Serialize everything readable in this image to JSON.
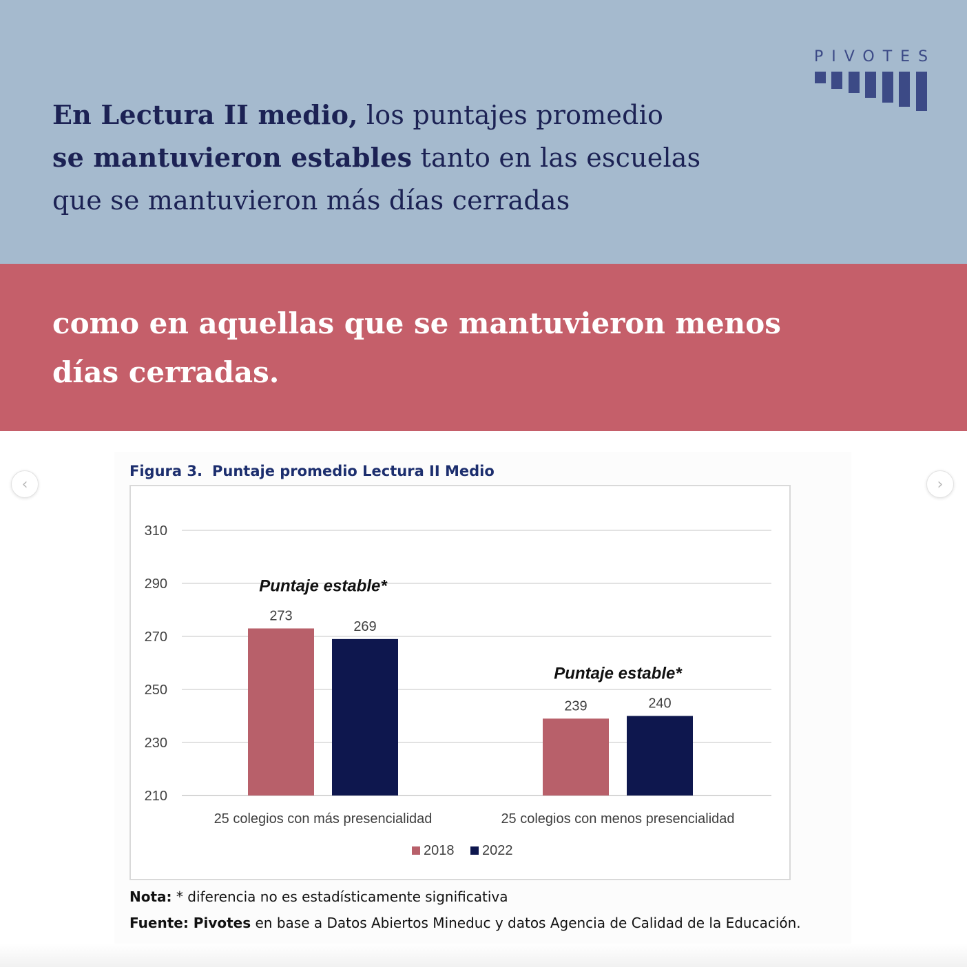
{
  "header": {
    "headline_bold_1": "En Lectura II medio,",
    "headline_text_1": " los puntajes promedio",
    "headline_bold_2": "se mantuvieron estables",
    "headline_text_2": " tanto en las escuelas",
    "headline_text_3": "que se mantuvieron más días cerradas",
    "logo_text": "PIVOTES"
  },
  "subheader": {
    "line_1": "como en aquellas que se mantuvieron menos",
    "line_2": "días cerradas."
  },
  "figure": {
    "number": "Figura 3.",
    "title": "Puntaje promedio Lectura II Medio",
    "note_label": "Nota:",
    "note_text": " * diferencia no es estadísticamente significativa",
    "source_label": "Fuente:",
    "source_brand": " Pivotes",
    "source_text": " en base a Datos Abiertos Mineduc y datos Agencia de Calidad de la Educación."
  },
  "colors": {
    "top_band": "#a5bace",
    "mid_band": "#c55f6a",
    "series_2018": "#b8606a",
    "series_2022": "#0e174e",
    "logo": "#3c4a86"
  },
  "chart_data": {
    "type": "bar",
    "title": "Puntaje promedio Lectura II Medio",
    "categories": [
      "25 colegios con más presencialidad",
      "25 colegios con menos presencialidad"
    ],
    "series": [
      {
        "name": "2018",
        "values": [
          273,
          239
        ]
      },
      {
        "name": "2022",
        "values": [
          269,
          240
        ]
      }
    ],
    "ylim": [
      210,
      310
    ],
    "yticks": [
      210,
      230,
      250,
      270,
      290,
      310
    ],
    "grid": true,
    "legend": "bottom",
    "annotations": [
      "Puntaje estable*",
      "Puntaje estable*"
    ]
  }
}
